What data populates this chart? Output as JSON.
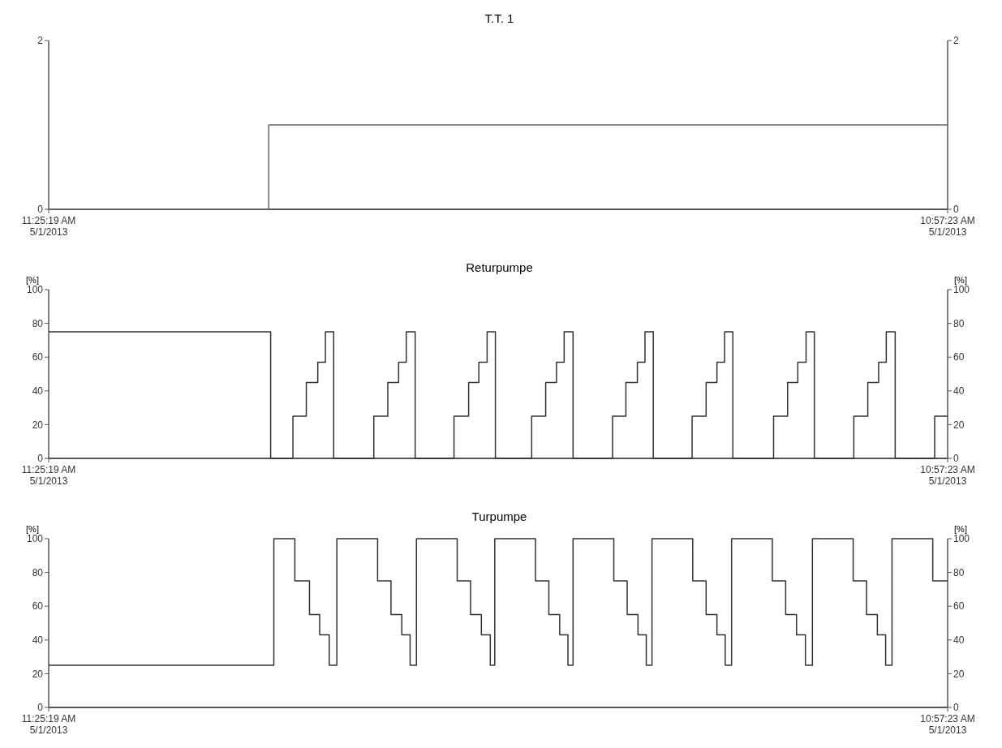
{
  "chart_data": [
    {
      "type": "step",
      "title": "T.T. 1",
      "xlim": [
        "2013-05-01T11:25:19",
        "2013-05-02T10:57:23"
      ],
      "xticks": [
        {
          "value": "2013-05-01T11:25:19",
          "label": "11:25:19 AM\n5/1/2013"
        },
        {
          "value": "2013-05-02T10:57:23",
          "label": "10:57:23 AM\n5/1/2013"
        }
      ],
      "ylim": [
        0,
        2
      ],
      "yticks": [
        0,
        2
      ],
      "y2lim": [
        0,
        2
      ],
      "y2ticks": [
        0,
        2
      ],
      "series": [
        {
          "color": "#666666",
          "x": [
            "2013-05-01T11:25:19",
            "2013-05-01T17:11",
            "2013-05-02T10:57:23"
          ],
          "values": [
            0,
            1,
            1
          ]
        }
      ]
    },
    {
      "type": "step",
      "title": "Returpumpe",
      "ylabel": "[%]",
      "y2label": "[%]",
      "xlim": [
        "2013-05-01T11:25:19",
        "2013-05-02T10:57:23"
      ],
      "xticks": [
        {
          "value": "2013-05-01T11:25:19",
          "label": "11:25:19 AM\n5/1/2013"
        },
        {
          "value": "2013-05-02T10:57:23",
          "label": "10:57:23 AM\n5/1/2013"
        }
      ],
      "ylim": [
        0,
        100
      ],
      "yticks": [
        0,
        20,
        40,
        60,
        80,
        100
      ],
      "y2lim": [
        0,
        100
      ],
      "y2ticks": [
        0,
        20,
        40,
        60,
        80,
        100
      ],
      "series": [
        {
          "color": "#333333",
          "x": [
            "2013-05-01T11:25:19",
            "2013-05-01T17:14",
            "2013-05-01T17:49",
            "2013-05-01T18:10",
            "2013-05-01T18:28",
            "2013-05-01T18:40",
            "2013-05-01T18:53",
            "2013-05-01T19:56",
            "2013-05-01T20:18",
            "2013-05-01T20:35",
            "2013-05-01T20:47",
            "2013-05-01T21:01",
            "2013-05-01T22:02",
            "2013-05-01T22:25",
            "2013-05-01T22:41",
            "2013-05-01T22:54",
            "2013-05-01T23:07",
            "2013-05-02T00:04",
            "2013-05-02T00:26",
            "2013-05-02T00:43",
            "2013-05-02T00:55",
            "2013-05-02T01:09",
            "2013-05-02T02:11",
            "2013-05-02T02:32",
            "2013-05-02T02:50",
            "2013-05-02T03:02",
            "2013-05-02T03:15",
            "2013-05-02T04:16",
            "2013-05-02T04:38",
            "2013-05-02T04:55",
            "2013-05-02T05:07",
            "2013-05-02T05:20",
            "2013-05-02T06:24",
            "2013-05-02T06:46",
            "2013-05-02T07:02",
            "2013-05-02T07:15",
            "2013-05-02T07:28",
            "2013-05-02T08:30",
            "2013-05-02T08:52",
            "2013-05-02T09:09",
            "2013-05-02T09:21",
            "2013-05-02T09:35",
            "2013-05-02T10:37",
            "2013-05-02T10:57:23"
          ],
          "values": [
            75,
            0,
            25,
            45,
            57,
            75,
            0,
            25,
            45,
            57,
            75,
            0,
            25,
            45,
            57,
            75,
            0,
            25,
            45,
            57,
            75,
            0,
            25,
            45,
            57,
            75,
            0,
            25,
            45,
            57,
            75,
            0,
            25,
            45,
            57,
            75,
            0,
            25,
            45,
            57,
            75,
            0,
            25,
            25
          ]
        }
      ]
    },
    {
      "type": "step",
      "title": "Turpumpe",
      "ylabel": "[%]",
      "y2label": "[%]",
      "xlim": [
        "2013-05-01T11:25:19",
        "2013-05-02T10:57:23"
      ],
      "xticks": [
        {
          "value": "2013-05-01T11:25:19",
          "label": "11:25:19 AM\n5/1/2013"
        },
        {
          "value": "2013-05-02T10:57:23",
          "label": "10:57:23 AM\n5/1/2013"
        }
      ],
      "ylim": [
        0,
        100
      ],
      "yticks": [
        0,
        20,
        40,
        60,
        80,
        100
      ],
      "y2lim": [
        0,
        100
      ],
      "y2ticks": [
        0,
        20,
        40,
        60,
        80,
        100
      ],
      "series": [
        {
          "color": "#333333",
          "x": [
            "2013-05-01T11:25:19",
            "2013-05-01T17:19",
            "2013-05-01T17:52",
            "2013-05-01T18:15",
            "2013-05-01T18:31",
            "2013-05-01T18:46",
            "2013-05-01T18:58",
            "2013-05-01T20:02",
            "2013-05-01T20:23",
            "2013-05-01T20:40",
            "2013-05-01T20:53",
            "2013-05-01T21:03",
            "2013-05-01T22:07",
            "2013-05-01T22:28",
            "2013-05-01T22:45",
            "2013-05-01T22:59",
            "2013-05-01T23:06",
            "2013-05-02T00:10",
            "2013-05-02T00:31",
            "2013-05-02T00:48",
            "2013-05-02T01:01",
            "2013-05-02T01:09",
            "2013-05-02T02:13",
            "2013-05-02T02:34",
            "2013-05-02T02:51",
            "2013-05-02T03:04",
            "2013-05-02T03:13",
            "2013-05-02T04:17",
            "2013-05-02T04:38",
            "2013-05-02T04:55",
            "2013-05-02T05:08",
            "2013-05-02T05:18",
            "2013-05-02T06:22",
            "2013-05-02T06:43",
            "2013-05-02T07:00",
            "2013-05-02T07:14",
            "2013-05-02T07:25",
            "2013-05-02T08:29",
            "2013-05-02T08:50",
            "2013-05-02T09:07",
            "2013-05-02T09:20",
            "2013-05-02T09:30",
            "2013-05-02T10:34",
            "2013-05-02T10:57:23"
          ],
          "values": [
            25,
            100,
            75,
            55,
            43,
            25,
            100,
            75,
            55,
            43,
            25,
            100,
            75,
            55,
            43,
            25,
            100,
            75,
            55,
            43,
            25,
            100,
            75,
            55,
            43,
            25,
            100,
            75,
            55,
            43,
            25,
            100,
            75,
            55,
            43,
            25,
            100,
            75,
            55,
            43,
            25,
            100,
            75,
            75
          ]
        }
      ]
    }
  ]
}
